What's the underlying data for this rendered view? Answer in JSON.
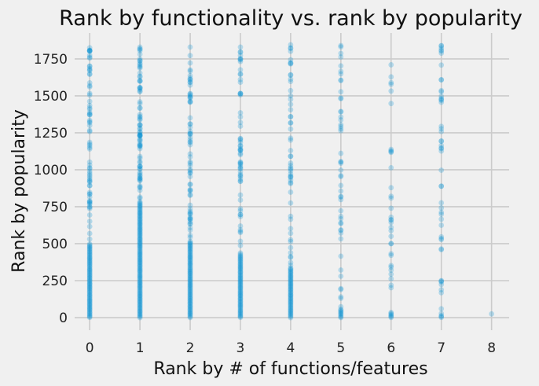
{
  "chart_data": {
    "type": "scatter",
    "title": "Rank by functionality vs. rank by popularity",
    "xlabel": "Rank by # of functions/features",
    "ylabel": "Rank by popularity",
    "xlim": [
      -0.3,
      8.35
    ],
    "ylim": [
      -85,
      1925
    ],
    "xticks": [
      0,
      1,
      2,
      3,
      4,
      5,
      6,
      7,
      8
    ],
    "yticks": [
      0,
      250,
      500,
      750,
      1000,
      1250,
      1500,
      1750
    ],
    "grid": true,
    "point_color": "#008fd5",
    "point_alpha": 0.25,
    "columns": [
      {
        "x": 0,
        "y_min": 0,
        "y_max": 1825,
        "dense_below": 500,
        "sparse_count": 70
      },
      {
        "x": 1,
        "y_min": 0,
        "y_max": 1830,
        "dense_below": 780,
        "sparse_count": 80
      },
      {
        "x": 2,
        "y_min": 0,
        "y_max": 1830,
        "dense_below": 500,
        "sparse_count": 70
      },
      {
        "x": 3,
        "y_min": 0,
        "y_max": 1830,
        "dense_below": 430,
        "sparse_count": 60
      },
      {
        "x": 4,
        "y_min": 0,
        "y_max": 1845,
        "dense_below": 340,
        "sparse_count": 52
      },
      {
        "x": 5,
        "y_min": 0,
        "y_max": 1840,
        "dense_below": 60,
        "sparse_count": 48
      },
      {
        "x": 6,
        "y_min": 0,
        "y_max": 1710,
        "dense_below": 40,
        "sparse_count": 32
      },
      {
        "x": 7,
        "y_min": 0,
        "y_max": 1840,
        "dense_below": 20,
        "sparse_count": 46
      },
      {
        "x": 8,
        "y_min": 25,
        "y_max": 25,
        "dense_below": 0,
        "sparse_count": 1
      }
    ]
  }
}
